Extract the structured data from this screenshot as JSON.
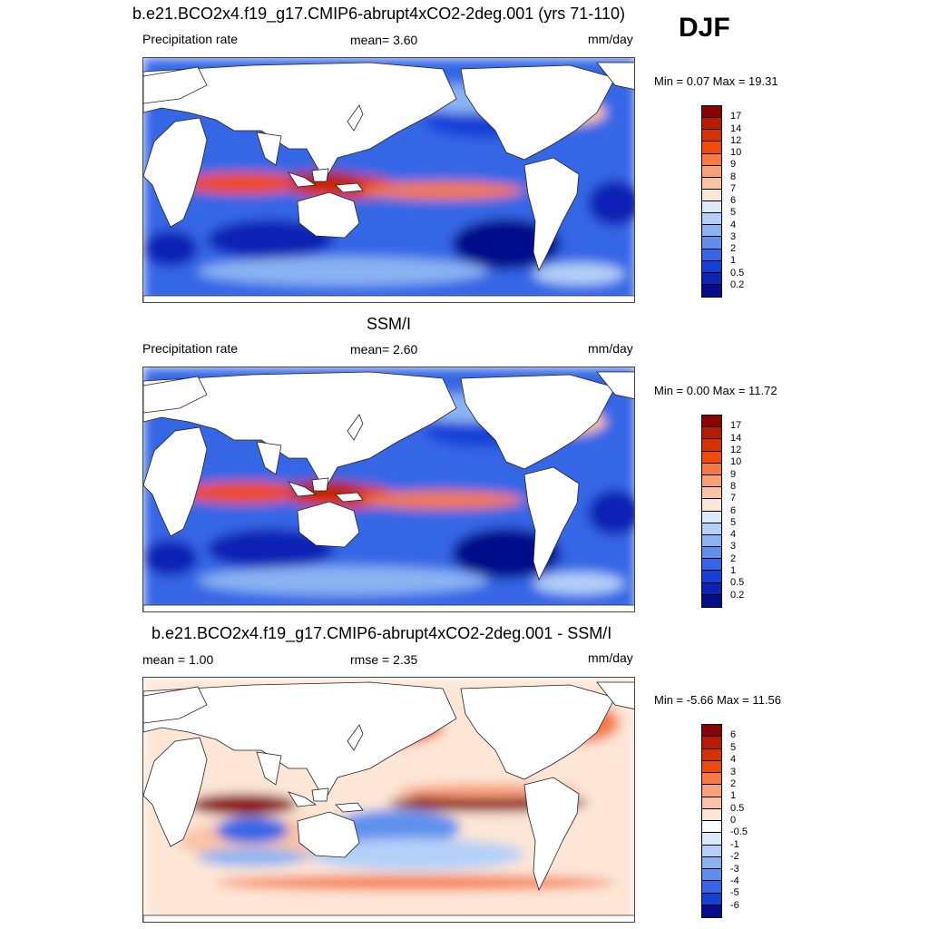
{
  "season": "DJF",
  "units": "mm/day",
  "panels": [
    {
      "id": "model",
      "title": "b.e21.BCO2x4.f19_g17.CMIP6-abrupt4xCO2-2deg.001 (yrs 71-110)",
      "left_label": "Precipitation rate",
      "center_label": "mean=   3.60",
      "right_label": "mm/day",
      "minmax": "Min =   0.07 Max =  19.31",
      "colorbar": {
        "levels": [
          "17",
          "14",
          "12",
          "10",
          "9",
          "8",
          "7",
          "6",
          "5",
          "4",
          "3",
          "2",
          "1",
          "0.5",
          "0.2"
        ],
        "colors": [
          "#8b0000",
          "#b71c00",
          "#d83100",
          "#f04a0a",
          "#f57845",
          "#f9a07b",
          "#fbc3a6",
          "#fde6d6",
          "#dbe9fb",
          "#b4d0f8",
          "#8ab3f3",
          "#5e90ee",
          "#3466e6",
          "#1540d8",
          "#0a24b4",
          "#050c8a"
        ]
      },
      "map_style": "abs"
    },
    {
      "id": "obs",
      "title": "SSM/I",
      "left_label": "Precipitation rate",
      "center_label": "mean=   2.60",
      "right_label": "mm/day",
      "minmax": "Min =   0.00 Max =  11.72",
      "colorbar": {
        "levels": [
          "17",
          "14",
          "12",
          "10",
          "9",
          "8",
          "7",
          "6",
          "5",
          "4",
          "3",
          "2",
          "1",
          "0.5",
          "0.2"
        ],
        "colors": [
          "#8b0000",
          "#b71c00",
          "#d83100",
          "#f04a0a",
          "#f57845",
          "#f9a07b",
          "#fbc3a6",
          "#fde6d6",
          "#dbe9fb",
          "#b4d0f8",
          "#8ab3f3",
          "#5e90ee",
          "#3466e6",
          "#1540d8",
          "#0a24b4",
          "#050c8a"
        ]
      },
      "map_style": "abs"
    },
    {
      "id": "diff",
      "title": "b.e21.BCO2x4.f19_g17.CMIP6-abrupt4xCO2-2deg.001 - SSM/I",
      "left_label": "mean =   1.00",
      "center_label": "rmse =   2.35",
      "right_label": "mm/day",
      "minmax": "Min =  -5.66 Max =  11.56",
      "colorbar": {
        "levels": [
          "6",
          "5",
          "4",
          "3",
          "2",
          "1",
          "0.5",
          "0",
          "-0.5",
          "-1",
          "-2",
          "-3",
          "-4",
          "-5",
          "-6"
        ],
        "colors": [
          "#8b0000",
          "#b71c00",
          "#d83100",
          "#f04a0a",
          "#f57845",
          "#f9a07b",
          "#fbc3a6",
          "#fde6d6",
          "#ffffff",
          "#dbe9fb",
          "#b4d0f8",
          "#8ab3f3",
          "#5e90ee",
          "#3466e6",
          "#1540d8",
          "#050c8a"
        ]
      },
      "map_style": "diff"
    }
  ]
}
